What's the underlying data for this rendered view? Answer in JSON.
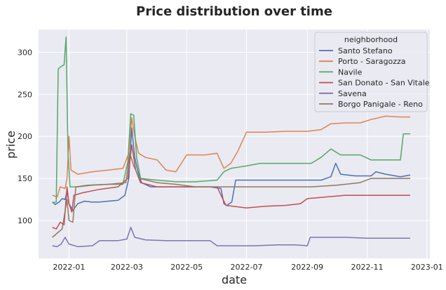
{
  "chart_data": {
    "type": "line",
    "title": "Price distribution over time",
    "xlabel": "date",
    "ylabel": "price",
    "x_ticks": [
      "2022-01",
      "2022-03",
      "2022-05",
      "2022-07",
      "2022-09",
      "2022-11",
      "2023-01"
    ],
    "x_range": [
      "2021-12-01",
      "2023-01-04"
    ],
    "y_ticks": [
      100,
      150,
      200,
      250,
      300
    ],
    "ylim": [
      55,
      327
    ],
    "grid": true,
    "background": "#eaeaf2",
    "legend": {
      "title": "neighborhood",
      "placement": "top-right"
    },
    "series": [
      {
        "name": "Santo Stefano",
        "color": "#4c72b0",
        "points": [
          [
            "2021-12-15",
            122
          ],
          [
            "2021-12-18",
            119
          ],
          [
            "2021-12-22",
            122
          ],
          [
            "2021-12-25",
            126
          ],
          [
            "2021-12-28",
            125
          ],
          [
            "2021-12-30",
            135
          ],
          [
            "2022-01-01",
            120
          ],
          [
            "2022-01-05",
            112
          ],
          [
            "2022-01-10",
            120
          ],
          [
            "2022-01-17",
            123
          ],
          [
            "2022-01-24",
            122
          ],
          [
            "2022-02-01",
            122
          ],
          [
            "2022-02-10",
            123
          ],
          [
            "2022-02-20",
            124
          ],
          [
            "2022-02-27",
            130
          ],
          [
            "2022-03-03",
            150
          ],
          [
            "2022-03-06",
            210
          ],
          [
            "2022-03-09",
            175
          ],
          [
            "2022-03-12",
            160
          ],
          [
            "2022-03-16",
            145
          ],
          [
            "2022-03-25",
            140
          ],
          [
            "2022-04-10",
            140
          ],
          [
            "2022-04-25",
            140
          ],
          [
            "2022-05-10",
            140
          ],
          [
            "2022-05-25",
            140
          ],
          [
            "2022-06-05",
            138
          ],
          [
            "2022-06-08",
            120
          ],
          [
            "2022-06-11",
            118
          ],
          [
            "2022-06-16",
            122
          ],
          [
            "2022-06-20",
            148
          ],
          [
            "2022-07-01",
            148
          ],
          [
            "2022-07-20",
            148
          ],
          [
            "2022-08-10",
            148
          ],
          [
            "2022-09-01",
            148
          ],
          [
            "2022-09-15",
            148
          ],
          [
            "2022-09-25",
            152
          ],
          [
            "2022-09-30",
            168
          ],
          [
            "2022-10-05",
            155
          ],
          [
            "2022-10-20",
            153
          ],
          [
            "2022-11-05",
            153
          ],
          [
            "2022-11-10",
            158
          ],
          [
            "2022-11-20",
            155
          ],
          [
            "2022-12-05",
            152
          ],
          [
            "2022-12-15",
            154
          ]
        ]
      },
      {
        "name": "Porto - Saragozza",
        "color": "#dd8452",
        "points": [
          [
            "2021-12-15",
            130
          ],
          [
            "2021-12-20",
            128
          ],
          [
            "2021-12-23",
            140
          ],
          [
            "2021-12-28",
            138
          ],
          [
            "2021-12-30",
            150
          ],
          [
            "2022-01-01",
            200
          ],
          [
            "2022-01-03",
            160
          ],
          [
            "2022-01-10",
            155
          ],
          [
            "2022-01-25",
            158
          ],
          [
            "2022-02-10",
            160
          ],
          [
            "2022-02-25",
            162
          ],
          [
            "2022-03-03",
            180
          ],
          [
            "2022-03-06",
            222
          ],
          [
            "2022-03-09",
            200
          ],
          [
            "2022-03-13",
            180
          ],
          [
            "2022-03-20",
            175
          ],
          [
            "2022-04-01",
            172
          ],
          [
            "2022-04-10",
            160
          ],
          [
            "2022-04-20",
            158
          ],
          [
            "2022-05-01",
            178
          ],
          [
            "2022-05-20",
            178
          ],
          [
            "2022-06-01",
            180
          ],
          [
            "2022-06-08",
            162
          ],
          [
            "2022-06-15",
            168
          ],
          [
            "2022-06-22",
            182
          ],
          [
            "2022-07-01",
            205
          ],
          [
            "2022-07-20",
            205
          ],
          [
            "2022-08-10",
            206
          ],
          [
            "2022-09-01",
            206
          ],
          [
            "2022-09-15",
            208
          ],
          [
            "2022-09-25",
            215
          ],
          [
            "2022-10-10",
            216
          ],
          [
            "2022-10-25",
            216
          ],
          [
            "2022-11-05",
            220
          ],
          [
            "2022-11-20",
            224
          ],
          [
            "2022-12-05",
            223
          ],
          [
            "2022-12-15",
            223
          ]
        ]
      },
      {
        "name": "Navile",
        "color": "#55a868",
        "points": [
          [
            "2021-12-15",
            121
          ],
          [
            "2021-12-19",
            122
          ],
          [
            "2021-12-21",
            280
          ],
          [
            "2021-12-24",
            283
          ],
          [
            "2021-12-27",
            285
          ],
          [
            "2021-12-29",
            318
          ],
          [
            "2021-12-31",
            180
          ],
          [
            "2022-01-02",
            140
          ],
          [
            "2022-01-10",
            140
          ],
          [
            "2022-01-25",
            142
          ],
          [
            "2022-02-10",
            143
          ],
          [
            "2022-02-25",
            143
          ],
          [
            "2022-03-02",
            170
          ],
          [
            "2022-03-05",
            227
          ],
          [
            "2022-03-08",
            225
          ],
          [
            "2022-03-11",
            175
          ],
          [
            "2022-03-15",
            150
          ],
          [
            "2022-04-01",
            148
          ],
          [
            "2022-04-20",
            146
          ],
          [
            "2022-05-10",
            146
          ],
          [
            "2022-06-01",
            148
          ],
          [
            "2022-06-08",
            158
          ],
          [
            "2022-06-15",
            162
          ],
          [
            "2022-07-01",
            165
          ],
          [
            "2022-07-15",
            168
          ],
          [
            "2022-08-01",
            168
          ],
          [
            "2022-08-20",
            168
          ],
          [
            "2022-09-05",
            168
          ],
          [
            "2022-09-15",
            175
          ],
          [
            "2022-09-25",
            185
          ],
          [
            "2022-10-05",
            178
          ],
          [
            "2022-10-25",
            178
          ],
          [
            "2022-11-05",
            172
          ],
          [
            "2022-11-25",
            172
          ],
          [
            "2022-12-05",
            172
          ],
          [
            "2022-12-08",
            203
          ],
          [
            "2022-12-15",
            203
          ]
        ]
      },
      {
        "name": "San Donato - San Vitale",
        "color": "#c44e52",
        "points": [
          [
            "2021-12-15",
            92
          ],
          [
            "2021-12-19",
            90
          ],
          [
            "2021-12-23",
            98
          ],
          [
            "2021-12-27",
            95
          ],
          [
            "2021-12-30",
            140
          ],
          [
            "2022-01-01",
            120
          ],
          [
            "2022-01-04",
            110
          ],
          [
            "2022-01-06",
            130
          ],
          [
            "2022-01-15",
            133
          ],
          [
            "2022-02-01",
            137
          ],
          [
            "2022-02-20",
            140
          ],
          [
            "2022-03-02",
            150
          ],
          [
            "2022-03-06",
            190
          ],
          [
            "2022-03-10",
            160
          ],
          [
            "2022-03-15",
            145
          ],
          [
            "2022-04-01",
            140
          ],
          [
            "2022-04-20",
            140
          ],
          [
            "2022-05-10",
            140
          ],
          [
            "2022-06-01",
            140
          ],
          [
            "2022-06-10",
            118
          ],
          [
            "2022-07-01",
            115
          ],
          [
            "2022-07-20",
            117
          ],
          [
            "2022-08-10",
            118
          ],
          [
            "2022-08-25",
            120
          ],
          [
            "2022-09-01",
            126
          ],
          [
            "2022-09-20",
            128
          ],
          [
            "2022-10-10",
            130
          ],
          [
            "2022-11-01",
            130
          ],
          [
            "2022-11-20",
            130
          ],
          [
            "2022-12-15",
            130
          ]
        ]
      },
      {
        "name": "Savena",
        "color": "#8172b3",
        "points": [
          [
            "2021-12-15",
            70
          ],
          [
            "2021-12-20",
            69
          ],
          [
            "2021-12-24",
            72
          ],
          [
            "2021-12-28",
            80
          ],
          [
            "2022-01-01",
            72
          ],
          [
            "2022-01-10",
            69
          ],
          [
            "2022-01-25",
            70
          ],
          [
            "2022-02-01",
            76
          ],
          [
            "2022-02-20",
            76
          ],
          [
            "2022-03-01",
            78
          ],
          [
            "2022-03-05",
            92
          ],
          [
            "2022-03-09",
            80
          ],
          [
            "2022-03-20",
            77
          ],
          [
            "2022-04-10",
            76
          ],
          [
            "2022-05-01",
            76
          ],
          [
            "2022-05-25",
            76
          ],
          [
            "2022-06-01",
            70
          ],
          [
            "2022-06-20",
            70
          ],
          [
            "2022-07-10",
            70
          ],
          [
            "2022-08-01",
            71
          ],
          [
            "2022-08-20",
            71
          ],
          [
            "2022-09-01",
            70
          ],
          [
            "2022-09-04",
            80
          ],
          [
            "2022-09-20",
            80
          ],
          [
            "2022-10-10",
            80
          ],
          [
            "2022-11-01",
            79
          ],
          [
            "2022-11-20",
            79
          ],
          [
            "2022-12-15",
            79
          ]
        ]
      },
      {
        "name": "Borgo Panigale - Reno",
        "color": "#937860",
        "points": [
          [
            "2021-12-15",
            80
          ],
          [
            "2021-12-20",
            85
          ],
          [
            "2021-12-25",
            90
          ],
          [
            "2021-12-30",
            125
          ],
          [
            "2022-01-01",
            100
          ],
          [
            "2022-01-05",
            98
          ],
          [
            "2022-01-08",
            140
          ],
          [
            "2022-01-20",
            142
          ],
          [
            "2022-02-10",
            143
          ],
          [
            "2022-02-28",
            145
          ],
          [
            "2022-03-04",
            180
          ],
          [
            "2022-03-08",
            165
          ],
          [
            "2022-03-14",
            150
          ],
          [
            "2022-04-01",
            145
          ],
          [
            "2022-04-20",
            143
          ],
          [
            "2022-05-10",
            140
          ],
          [
            "2022-06-01",
            140
          ],
          [
            "2022-06-20",
            140
          ],
          [
            "2022-07-15",
            140
          ],
          [
            "2022-08-10",
            140
          ],
          [
            "2022-09-05",
            140
          ],
          [
            "2022-10-01",
            142
          ],
          [
            "2022-10-25",
            145
          ],
          [
            "2022-11-05",
            150
          ],
          [
            "2022-11-20",
            150
          ],
          [
            "2022-12-15",
            150
          ]
        ]
      }
    ]
  }
}
